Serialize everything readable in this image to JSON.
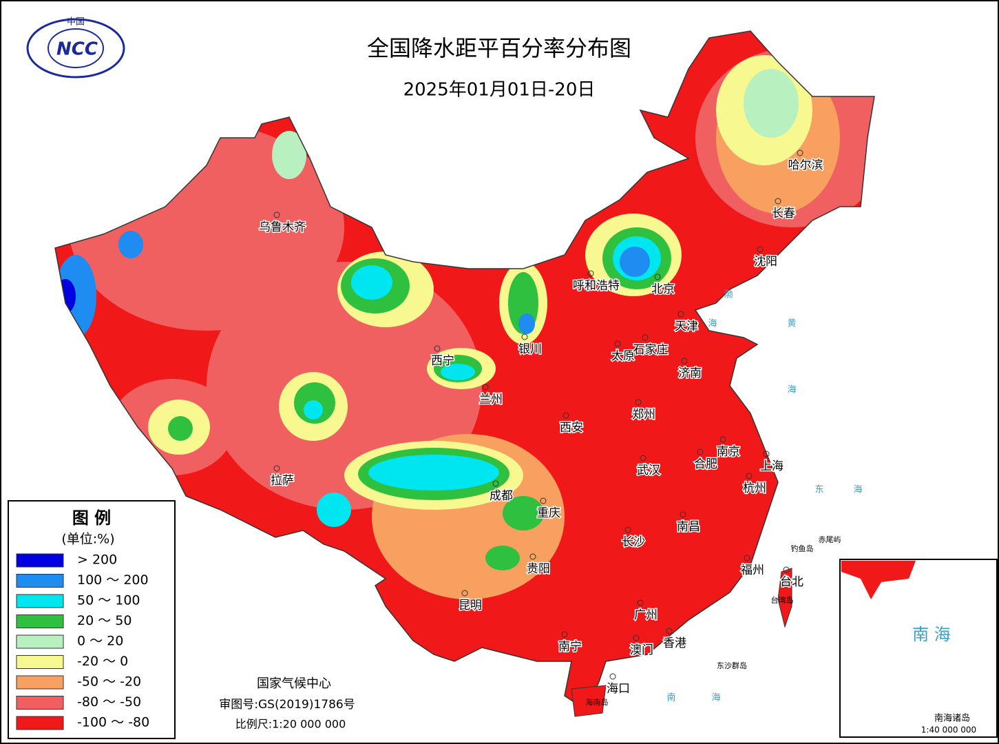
{
  "header": {
    "title": "全国降水距平百分率分布图",
    "subtitle": "2025年01月01日-20日"
  },
  "logo": {
    "top": "中国",
    "text": "NCC"
  },
  "legend": {
    "title": "图 例",
    "unit": "(单位:%)",
    "items": [
      {
        "label": "> 200",
        "color": "#0000e0"
      },
      {
        "label": "100 ～ 200",
        "color": "#1e8cf0"
      },
      {
        "label": "50 ～ 100",
        "color": "#00e6f0"
      },
      {
        "label": "20 ～ 50",
        "color": "#30c040"
      },
      {
        "label": "0 ～ 20",
        "color": "#b8f0c0"
      },
      {
        "label": "-20 ～ 0",
        "color": "#f8f890"
      },
      {
        "label": "-50 ～ -20",
        "color": "#f8a060"
      },
      {
        "label": "-80 ～ -50",
        "color": "#f06060"
      },
      {
        "label": "-100 ～ -80",
        "color": "#f01818"
      }
    ]
  },
  "cities": [
    "乌鲁木齐",
    "哈尔滨",
    "长春",
    "沈阳",
    "呼和浩特",
    "北京",
    "天津",
    "银川",
    "太原",
    "石家庄",
    "济南",
    "西宁",
    "兰州",
    "西安",
    "郑州",
    "南京",
    "上海",
    "合肥",
    "武汉",
    "杭州",
    "拉萨",
    "成都",
    "重庆",
    "长沙",
    "南昌",
    "贵阳",
    "福州",
    "台北",
    "昆明",
    "广州",
    "南宁",
    "澳门",
    "香港",
    "海口"
  ],
  "places": [
    "东沙群岛",
    "钓鱼岛",
    "赤尾屿",
    "台湾岛",
    "海南岛"
  ],
  "seas": [
    "渤",
    "海",
    "黄",
    "海",
    "东",
    "海",
    "南",
    "海"
  ],
  "inset": {
    "title": "南 海",
    "label": "南海诸岛",
    "scale": "1:40 000 000"
  },
  "footer": {
    "org": "国家气候中心",
    "approval": "审图号:GS(2019)1786号",
    "scale": "比例尺:1:20 000 000"
  }
}
